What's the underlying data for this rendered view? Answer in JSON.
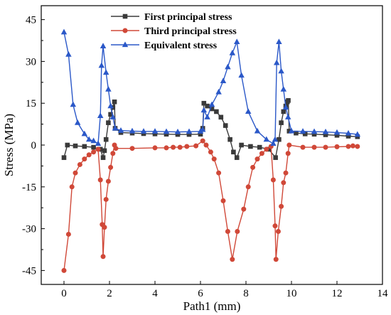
{
  "chart_data": {
    "type": "line",
    "title": "",
    "xlabel": "Path1 (mm)",
    "ylabel": "Stress (MPa)",
    "xlim": [
      -1,
      14
    ],
    "ylim": [
      -50,
      50
    ],
    "xticks": [
      0,
      2,
      4,
      6,
      8,
      10,
      12,
      14
    ],
    "yticks": [
      -45,
      -30,
      -15,
      0,
      15,
      30,
      45
    ],
    "xtick_labels": [
      "0",
      "2",
      "4",
      "6",
      "8",
      "10",
      "12",
      "14"
    ],
    "ytick_labels": [
      "-45",
      "-30",
      "-15",
      "0",
      "15",
      "30",
      "45"
    ],
    "grid": false,
    "legend_position": "top-center",
    "series": [
      {
        "name": "First principal stress",
        "color": "#3a3a3a",
        "marker": "square",
        "x": [
          0,
          0.15,
          0.5,
          0.9,
          1.3,
          1.6,
          1.72,
          1.78,
          1.85,
          1.95,
          2.05,
          2.15,
          2.22,
          2.25,
          2.5,
          3.0,
          3.5,
          4.0,
          4.5,
          5.0,
          5.5,
          6.0,
          6.1,
          6.15,
          6.3,
          6.5,
          6.7,
          6.9,
          7.1,
          7.3,
          7.45,
          7.6,
          7.8,
          8.2,
          8.6,
          9.0,
          9.3,
          9.45,
          9.55,
          9.65,
          9.75,
          9.82,
          9.86,
          9.9,
          10.2,
          10.6,
          11.0,
          11.5,
          12.0,
          12.5,
          12.9
        ],
        "y": [
          -4.5,
          0,
          -0.3,
          -0.5,
          -0.8,
          -1.5,
          -4.5,
          -2,
          2,
          8,
          11,
          13.5,
          15.5,
          6,
          4.5,
          4.3,
          4.1,
          4.0,
          3.9,
          3.8,
          3.8,
          3.9,
          6,
          15,
          14,
          13,
          12,
          10,
          7,
          2,
          -2.5,
          -4.5,
          0,
          -0.5,
          -0.8,
          -1.5,
          -4.5,
          2,
          8,
          12,
          14,
          15.5,
          16,
          5,
          4.3,
          4.0,
          3.9,
          3.7,
          3.5,
          3.2,
          3.0
        ]
      },
      {
        "name": "Third principal stress",
        "color": "#d04838",
        "marker": "circle",
        "x": [
          0,
          0.2,
          0.35,
          0.5,
          0.7,
          0.9,
          1.1,
          1.3,
          1.5,
          1.6,
          1.68,
          1.72,
          1.78,
          1.85,
          1.95,
          2.05,
          2.15,
          2.22,
          2.28,
          3.0,
          4.0,
          4.5,
          4.8,
          5.1,
          5.4,
          5.8,
          6.1,
          6.25,
          6.45,
          6.6,
          6.8,
          7.0,
          7.2,
          7.4,
          7.62,
          7.9,
          8.1,
          8.3,
          8.5,
          8.7,
          8.9,
          9.1,
          9.2,
          9.28,
          9.32,
          9.42,
          9.55,
          9.65,
          9.75,
          9.85,
          9.9,
          10.5,
          11.0,
          11.5,
          12.0,
          12.5,
          12.7,
          12.9
        ],
        "y": [
          -45,
          -32,
          -15,
          -10,
          -7,
          -5,
          -3.5,
          -2.5,
          -1.5,
          -12.5,
          -28.5,
          -40,
          -29.5,
          -19.5,
          -13,
          -8,
          -3,
          0,
          -1.2,
          -1.2,
          -1.0,
          -1.0,
          -0.8,
          -0.8,
          -0.5,
          -0.3,
          1.5,
          0,
          -2.5,
          -5,
          -10,
          -20,
          -31,
          -41,
          -31,
          -23,
          -15,
          -8,
          -5,
          -3,
          -1.5,
          -0.5,
          -12.5,
          -29,
          -41,
          -31,
          -22,
          -13.5,
          -10,
          -3,
          0,
          -0.8,
          -0.8,
          -0.8,
          -0.6,
          -0.5,
          -0.3,
          -0.5
        ]
      },
      {
        "name": "Equivalent stress",
        "color": "#2b58c8",
        "marker": "triangle",
        "x": [
          0,
          0.2,
          0.4,
          0.6,
          0.9,
          1.1,
          1.3,
          1.5,
          1.6,
          1.65,
          1.72,
          1.85,
          1.95,
          2.05,
          2.15,
          2.25,
          2.5,
          3.0,
          3.5,
          4.0,
          4.5,
          5.0,
          5.5,
          6.0,
          6.1,
          6.15,
          6.3,
          6.5,
          6.8,
          7.0,
          7.2,
          7.4,
          7.6,
          7.8,
          8.1,
          8.5,
          8.9,
          9.2,
          9.28,
          9.35,
          9.45,
          9.55,
          9.65,
          9.75,
          9.85,
          10.0,
          10.5,
          11.0,
          11.5,
          12.0,
          12.5,
          12.9
        ],
        "y": [
          40.5,
          32.5,
          14.5,
          8,
          4,
          2,
          1.5,
          0.5,
          10.5,
          28.5,
          35.5,
          26,
          20,
          14,
          10,
          6,
          5.2,
          5.0,
          4.9,
          4.9,
          4.8,
          4.7,
          4.8,
          4.9,
          5.5,
          12.5,
          10,
          14.5,
          19,
          23,
          28,
          33,
          37,
          25,
          12,
          5,
          2,
          0.5,
          2,
          29.5,
          37,
          26.5,
          20,
          13.5,
          10,
          5,
          4.9,
          4.8,
          4.7,
          4.5,
          4.2,
          3.8
        ]
      }
    ]
  }
}
